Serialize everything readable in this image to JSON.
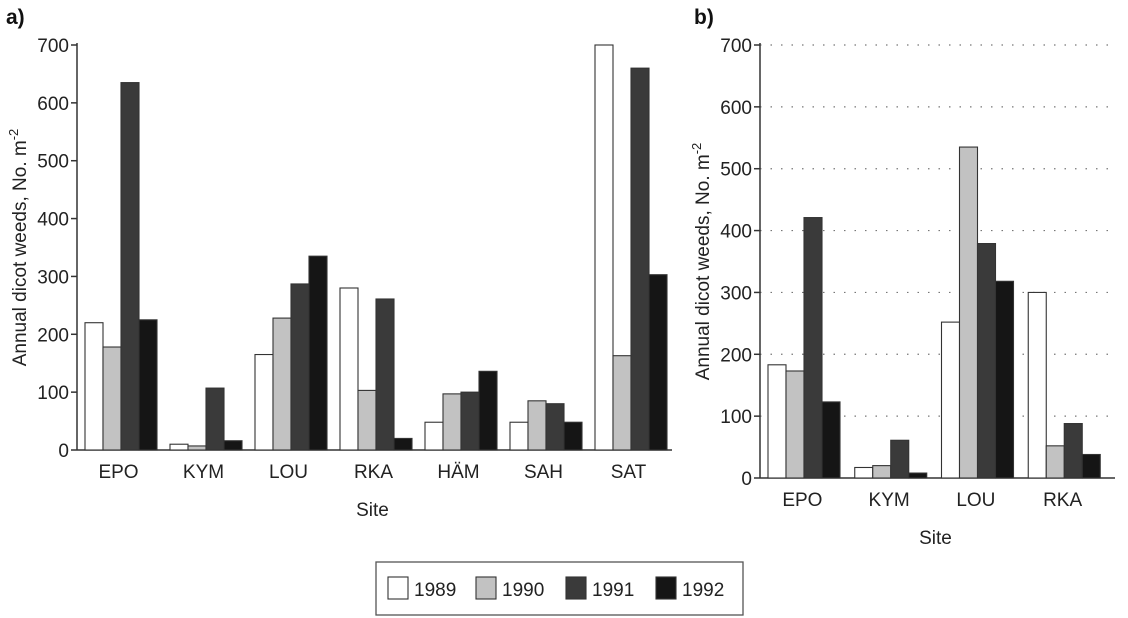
{
  "chart_data": [
    {
      "type": "bar",
      "panel_label": "a)",
      "xlabel": "Site",
      "ylabel": "Annual dicot weeds, No. m",
      "ylabel_superscript": "-2",
      "ylim": [
        0,
        700
      ],
      "yticks": [
        0,
        100,
        200,
        300,
        400,
        500,
        600,
        700
      ],
      "grid": false,
      "categories": [
        "EPO",
        "KYM",
        "LOU",
        "RKA",
        "HÄM",
        "SAH",
        "SAT"
      ],
      "series": [
        {
          "name": "1989",
          "color": "#ffffff",
          "values": [
            220,
            10,
            165,
            280,
            48,
            48,
            700
          ]
        },
        {
          "name": "1990",
          "color": "#c2c2c2",
          "values": [
            178,
            7,
            228,
            103,
            97,
            85,
            163
          ]
        },
        {
          "name": "1991",
          "color": "#3a3a3a",
          "values": [
            635,
            107,
            287,
            261,
            100,
            80,
            660
          ]
        },
        {
          "name": "1992",
          "color": "#151515",
          "values": [
            225,
            16,
            335,
            20,
            136,
            48,
            303
          ]
        }
      ]
    },
    {
      "type": "bar",
      "panel_label": "b)",
      "xlabel": "Site",
      "ylabel": "Annual dicot weeds, No. m",
      "ylabel_superscript": "-2",
      "ylim": [
        0,
        700
      ],
      "yticks": [
        0,
        100,
        200,
        300,
        400,
        500,
        600,
        700
      ],
      "grid": true,
      "categories": [
        "EPO",
        "KYM",
        "LOU",
        "RKA"
      ],
      "series": [
        {
          "name": "1989",
          "color": "#ffffff",
          "values": [
            183,
            17,
            252,
            300
          ]
        },
        {
          "name": "1990",
          "color": "#c2c2c2",
          "values": [
            173,
            20,
            535,
            52
          ]
        },
        {
          "name": "1991",
          "color": "#3a3a3a",
          "values": [
            421,
            61,
            379,
            88
          ]
        },
        {
          "name": "1992",
          "color": "#151515",
          "values": [
            123,
            8,
            318,
            38
          ]
        }
      ]
    }
  ],
  "legend": {
    "placement": "bottom-center",
    "items": [
      {
        "label": "1989",
        "color": "#ffffff"
      },
      {
        "label": "1990",
        "color": "#c2c2c2"
      },
      {
        "label": "1991",
        "color": "#3a3a3a"
      },
      {
        "label": "1992",
        "color": "#151515"
      }
    ]
  }
}
